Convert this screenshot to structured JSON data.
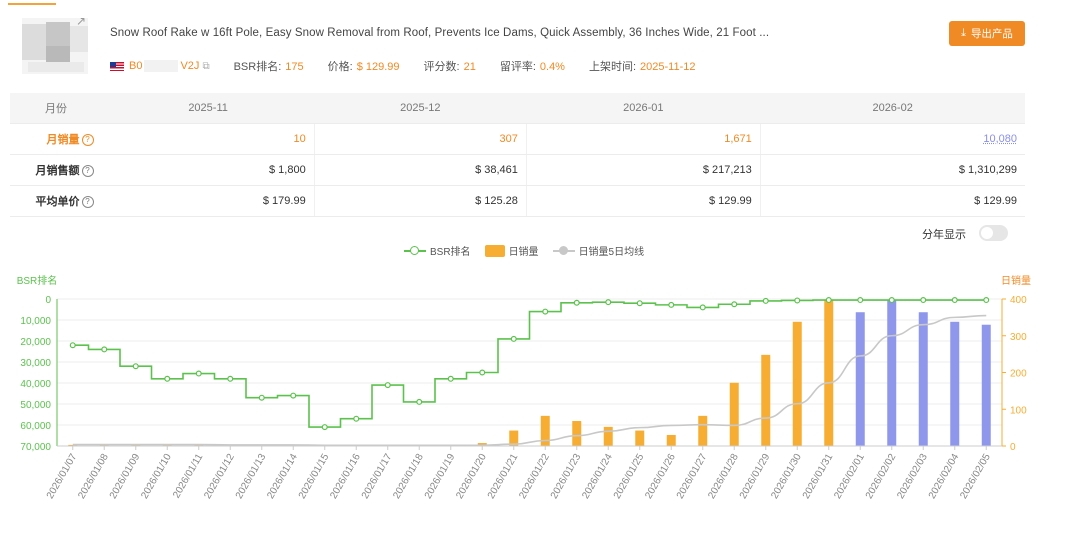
{
  "product": {
    "title": "Snow Roof Rake w 16ft Pole, Easy Snow Removal from Roof, Prevents Ice Dams, Quick Assembly, 36 Inches Wide, 21 Foot ...",
    "asin_prefix": "B0",
    "asin_suffix": "V2J",
    "bsr_label": "BSR排名:",
    "bsr_value": "175",
    "price_label": "价格:",
    "price_value": "$ 129.99",
    "reviews_label": "评分数:",
    "reviews_value": "21",
    "retention_label": "留评率:",
    "retention_value": "0.4%",
    "listed_label": "上架时间:",
    "listed_value": "2025-11-12"
  },
  "export_button": "导出产品",
  "stats_table": {
    "header_label": "月份",
    "months": [
      "2025-11",
      "2025-12",
      "2026-01",
      "2026-02"
    ],
    "rows": [
      {
        "label": "月销量",
        "values": [
          "10",
          "307",
          "1,671",
          "10,080"
        ]
      },
      {
        "label": "月销售额",
        "values": [
          "$ 1,800",
          "$ 38,461",
          "$ 217,213",
          "$ 1,310,299"
        ]
      },
      {
        "label": "平均单价",
        "values": [
          "$ 179.99",
          "$ 125.28",
          "$ 129.99",
          "$ 129.99"
        ]
      }
    ]
  },
  "year_toggle_label": "分年显示",
  "year_toggle_on": false,
  "colors": {
    "accent": "#f08a24",
    "bsr_line": "#5cc24e",
    "bar": "#f6ad32",
    "bar_alt": "#8f97ec",
    "avg_line": "#c8c8c8"
  },
  "chart_data": {
    "type": "bar",
    "legend": [
      "BSR排名",
      "日销量",
      "日销量5日均线"
    ],
    "legend_position": "top-center",
    "left_axis_label": "BSR排名",
    "right_axis_label": "日销量",
    "left_ticks": [
      "0",
      "10,000",
      "20,000",
      "30,000",
      "40,000",
      "50,000",
      "60,000",
      "70,000"
    ],
    "right_ticks": [
      "0",
      "100",
      "200",
      "300",
      "400"
    ],
    "left_ylim": [
      0,
      70000
    ],
    "right_ylim": [
      0,
      400
    ],
    "left_inverted": true,
    "grid": true,
    "categories": [
      "2026/01/07",
      "2026/01/08",
      "2026/01/09",
      "2026/01/10",
      "2026/01/11",
      "2026/01/12",
      "2026/01/13",
      "2026/01/14",
      "2026/01/15",
      "2026/01/16",
      "2026/01/17",
      "2026/01/18",
      "2026/01/19",
      "2026/01/20",
      "2026/01/21",
      "2026/01/22",
      "2026/01/23",
      "2026/01/24",
      "2026/01/25",
      "2026/01/26",
      "2026/01/27",
      "2026/01/28",
      "2026/01/29",
      "2026/01/30",
      "2026/01/31",
      "2026/02/01",
      "2026/02/02",
      "2026/02/03",
      "2026/02/04",
      "2026/02/05"
    ],
    "series": [
      {
        "name": "BSR排名",
        "axis": "left",
        "step": true,
        "values": [
          22000,
          24000,
          32000,
          38000,
          35500,
          38000,
          47000,
          46000,
          61000,
          57000,
          41000,
          49000,
          38000,
          35000,
          19000,
          6000,
          1800,
          1500,
          2000,
          2800,
          4000,
          2500,
          900,
          700,
          500,
          500,
          500,
          500,
          500,
          500
        ]
      },
      {
        "name": "日销量",
        "axis": "right",
        "values": [
          3,
          3,
          3,
          3,
          3,
          2,
          2,
          2,
          2,
          2,
          2,
          2,
          3,
          8,
          42,
          82,
          68,
          52,
          42,
          30,
          82,
          172,
          248,
          338,
          396,
          364,
          396,
          364,
          338,
          330
        ]
      },
      {
        "name": "日销量5日均线",
        "axis": "right",
        "values": [
          4,
          4,
          4,
          4,
          4,
          3,
          3,
          3,
          2,
          2,
          2,
          2,
          2,
          2,
          5,
          15,
          28,
          40,
          50,
          56,
          58,
          56,
          76,
          115,
          172,
          245,
          300,
          330,
          350,
          355
        ]
      }
    ]
  }
}
